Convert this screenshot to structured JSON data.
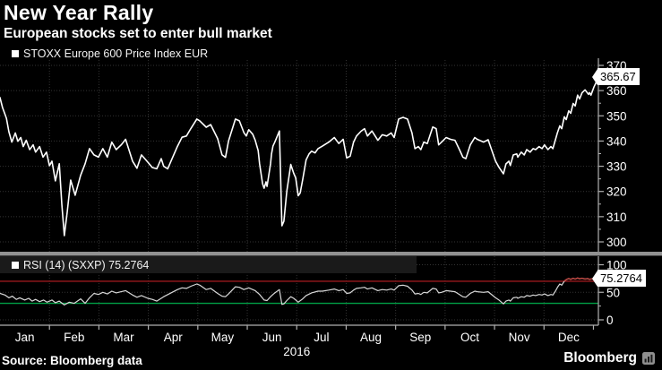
{
  "header": {
    "title": "New Year Rally",
    "subtitle": "European stocks set to enter bull market"
  },
  "price_panel": {
    "legend_label": "STOXX Europe 600 Price Index EUR",
    "last_value_label": "365.67",
    "axis_ticks": [
      370,
      360,
      350,
      340,
      330,
      320,
      310,
      300
    ]
  },
  "rsi_panel": {
    "legend_label": "RSI (14) (SXXP) 75.2764",
    "last_value_label": "75.2764",
    "axis_ticks": [
      100,
      50,
      0
    ]
  },
  "x_axis": {
    "months": [
      "Jan",
      "Feb",
      "Mar",
      "Apr",
      "May",
      "Jun",
      "Jul",
      "Aug",
      "Sep",
      "Oct",
      "Nov",
      "Dec"
    ],
    "year": "2016"
  },
  "footer": {
    "source": "Source: Bloomberg data",
    "brand": "Bloomberg",
    "brand_icon": "bloomberg-terminal-icon"
  },
  "colors": {
    "background": "#000000",
    "grid": "#333333",
    "axis": "#b0b0b0",
    "price_line": "#ffffff",
    "rsi_line": "#d8d8d8",
    "rsi_overbought_segment": "#c2443f",
    "overbought_line": "#99191c",
    "oversold_line": "#00a046",
    "callout_bg": "#ffffff",
    "callout_text": "#000000",
    "rsi_legend_bg": "#1a1a1a",
    "divider": "#919191"
  },
  "chart_data": [
    {
      "type": "line",
      "title": "STOXX Europe 600 Price Index EUR",
      "x_unit": "months since 2016-01-01 (0=Jan .. 12=year end)",
      "x_range": [
        0,
        12.1
      ],
      "ylim": [
        300,
        370
      ],
      "y_ticks": [
        300,
        310,
        320,
        330,
        340,
        350,
        360,
        370
      ],
      "grid": true,
      "legend_position": "top-left",
      "last_value": 365.67,
      "points": [
        [
          0,
          357.2
        ],
        [
          0.05,
          353.3
        ],
        [
          0.13,
          349
        ],
        [
          0.18,
          343.7
        ],
        [
          0.24,
          339.6
        ],
        [
          0.31,
          343.2
        ],
        [
          0.36,
          339.9
        ],
        [
          0.42,
          341.4
        ],
        [
          0.47,
          337.8
        ],
        [
          0.53,
          340.3
        ],
        [
          0.6,
          336.6
        ],
        [
          0.67,
          338.5
        ],
        [
          0.72,
          335.6
        ],
        [
          0.8,
          337.8
        ],
        [
          0.87,
          333.6
        ],
        [
          0.94,
          335.6
        ],
        [
          1,
          330.2
        ],
        [
          1.05,
          332
        ],
        [
          1.12,
          324.2
        ],
        [
          1.2,
          331
        ],
        [
          1.25,
          315
        ],
        [
          1.3,
          302.5
        ],
        [
          1.36,
          312
        ],
        [
          1.43,
          324.5
        ],
        [
          1.52,
          318.5
        ],
        [
          1.63,
          326.4
        ],
        [
          1.72,
          331
        ],
        [
          1.81,
          337
        ],
        [
          1.9,
          334.5
        ],
        [
          1.99,
          333.6
        ],
        [
          2.08,
          337
        ],
        [
          2.17,
          333.6
        ],
        [
          2.26,
          339.6
        ],
        [
          2.35,
          336.6
        ],
        [
          2.45,
          338.5
        ],
        [
          2.54,
          340.7
        ],
        [
          2.68,
          332
        ],
        [
          2.77,
          329.2
        ],
        [
          2.86,
          334.5
        ],
        [
          2.99,
          331.6
        ],
        [
          3.08,
          329.5
        ],
        [
          3.17,
          329
        ],
        [
          3.26,
          333
        ],
        [
          3.31,
          330
        ],
        [
          3.39,
          329
        ],
        [
          3.48,
          333
        ],
        [
          3.59,
          338
        ],
        [
          3.68,
          341.5
        ],
        [
          3.77,
          342
        ],
        [
          3.86,
          345
        ],
        [
          3.98,
          348.7
        ],
        [
          4.04,
          348
        ],
        [
          4.17,
          345.5
        ],
        [
          4.26,
          346.5
        ],
        [
          4.4,
          341
        ],
        [
          4.49,
          334.5
        ],
        [
          4.56,
          333.5
        ],
        [
          4.62,
          340
        ],
        [
          4.76,
          348.7
        ],
        [
          4.84,
          348
        ],
        [
          4.93,
          343.4
        ],
        [
          4.98,
          342
        ],
        [
          5.03,
          344.5
        ],
        [
          5.11,
          342.7
        ],
        [
          5.16,
          340.3
        ],
        [
          5.22,
          336.2
        ],
        [
          5.25,
          330.9
        ],
        [
          5.31,
          323.1
        ],
        [
          5.34,
          321.3
        ],
        [
          5.38,
          323.8
        ],
        [
          5.4,
          322
        ],
        [
          5.47,
          330.9
        ],
        [
          5.49,
          334.9
        ],
        [
          5.52,
          338
        ],
        [
          5.56,
          339.7
        ],
        [
          5.65,
          344
        ],
        [
          5.7,
          306.4
        ],
        [
          5.74,
          308.2
        ],
        [
          5.8,
          320.2
        ],
        [
          5.88,
          330.7
        ],
        [
          5.94,
          327.2
        ],
        [
          5.98,
          325.4
        ],
        [
          6.03,
          318.3
        ],
        [
          6.07,
          319.4
        ],
        [
          6.12,
          324.7
        ],
        [
          6.19,
          332.5
        ],
        [
          6.25,
          334.9
        ],
        [
          6.3,
          336
        ],
        [
          6.37,
          335.3
        ],
        [
          6.43,
          337
        ],
        [
          6.52,
          338
        ],
        [
          6.65,
          339.6
        ],
        [
          6.76,
          341.4
        ],
        [
          6.85,
          339
        ],
        [
          6.94,
          340.7
        ],
        [
          7.01,
          333.3
        ],
        [
          7.08,
          334
        ],
        [
          7.15,
          339.6
        ],
        [
          7.21,
          342
        ],
        [
          7.3,
          343.9
        ],
        [
          7.37,
          344.9
        ],
        [
          7.43,
          342
        ],
        [
          7.52,
          344
        ],
        [
          7.64,
          340.3
        ],
        [
          7.73,
          342.5
        ],
        [
          7.82,
          342
        ],
        [
          7.91,
          343.2
        ],
        [
          7.97,
          341.4
        ],
        [
          8.06,
          348.7
        ],
        [
          8.15,
          349.4
        ],
        [
          8.24,
          348.7
        ],
        [
          8.33,
          343.2
        ],
        [
          8.39,
          337
        ],
        [
          8.46,
          337.8
        ],
        [
          8.51,
          336.6
        ],
        [
          8.57,
          339.6
        ],
        [
          8.64,
          339
        ],
        [
          8.75,
          345.6
        ],
        [
          8.82,
          344.9
        ],
        [
          8.87,
          338.5
        ],
        [
          8.93,
          339.6
        ],
        [
          9.02,
          341.4
        ],
        [
          9.11,
          340.7
        ],
        [
          9.2,
          340.3
        ],
        [
          9.29,
          336.6
        ],
        [
          9.36,
          333.6
        ],
        [
          9.42,
          333
        ],
        [
          9.51,
          338.5
        ],
        [
          9.6,
          341.4
        ],
        [
          9.65,
          340.7
        ],
        [
          9.78,
          339.6
        ],
        [
          9.87,
          340.5
        ],
        [
          10.02,
          332
        ],
        [
          10.09,
          329.6
        ],
        [
          10.18,
          327
        ],
        [
          10.23,
          330.9
        ],
        [
          10.29,
          332
        ],
        [
          10.32,
          330.3
        ],
        [
          10.38,
          334.5
        ],
        [
          10.45,
          334.9
        ],
        [
          10.47,
          333.6
        ],
        [
          10.54,
          335.6
        ],
        [
          10.6,
          334.5
        ],
        [
          10.65,
          336.6
        ],
        [
          10.72,
          335.6
        ],
        [
          10.78,
          337
        ],
        [
          10.83,
          336.6
        ],
        [
          10.9,
          337.8
        ],
        [
          10.96,
          337
        ],
        [
          11.01,
          338.5
        ],
        [
          11.08,
          336.6
        ],
        [
          11.14,
          337.8
        ],
        [
          11.18,
          337
        ],
        [
          11.27,
          343.2
        ],
        [
          11.32,
          346
        ],
        [
          11.36,
          344.9
        ],
        [
          11.41,
          349.6
        ],
        [
          11.45,
          348.5
        ],
        [
          11.5,
          352
        ],
        [
          11.54,
          351
        ],
        [
          11.59,
          354.9
        ],
        [
          11.63,
          353.9
        ],
        [
          11.68,
          358.2
        ],
        [
          11.72,
          356.7
        ],
        [
          11.77,
          359.2
        ],
        [
          11.83,
          360.3
        ],
        [
          11.9,
          358.5
        ],
        [
          11.92,
          359.2
        ],
        [
          11.95,
          358.2
        ],
        [
          12.01,
          361.4
        ],
        [
          12.08,
          364.3
        ],
        [
          12.1,
          365.67
        ]
      ]
    },
    {
      "type": "line",
      "title": "RSI (14) (SXXP)",
      "x_unit": "months since 2016-01-01 (0=Jan .. 12=year end)",
      "x_range": [
        0,
        12.1
      ],
      "ylim": [
        0,
        100
      ],
      "y_ticks": [
        0,
        50,
        100
      ],
      "overbought": 70,
      "oversold": 30,
      "last_value": 75.2764,
      "points": [
        [
          0,
          48
        ],
        [
          0.1,
          45
        ],
        [
          0.18,
          40
        ],
        [
          0.25,
          43
        ],
        [
          0.33,
          37
        ],
        [
          0.4,
          40
        ],
        [
          0.5,
          36
        ],
        [
          0.58,
          39
        ],
        [
          0.65,
          34
        ],
        [
          0.72,
          37
        ],
        [
          0.8,
          33
        ],
        [
          0.88,
          36
        ],
        [
          0.95,
          32
        ],
        [
          1.05,
          36
        ],
        [
          1.12,
          31
        ],
        [
          1.2,
          34
        ],
        [
          1.3,
          27
        ],
        [
          1.4,
          32
        ],
        [
          1.5,
          30
        ],
        [
          1.63,
          38
        ],
        [
          1.72,
          30
        ],
        [
          1.81,
          40
        ],
        [
          1.9,
          48
        ],
        [
          1.99,
          46
        ],
        [
          2.08,
          50
        ],
        [
          2.17,
          47
        ],
        [
          2.26,
          52
        ],
        [
          2.35,
          49
        ],
        [
          2.45,
          51
        ],
        [
          2.54,
          53
        ],
        [
          2.68,
          45
        ],
        [
          2.77,
          41
        ],
        [
          2.86,
          44
        ],
        [
          2.99,
          39
        ],
        [
          3.08,
          37
        ],
        [
          3.17,
          34
        ],
        [
          3.31,
          42
        ],
        [
          3.48,
          50
        ],
        [
          3.59,
          55
        ],
        [
          3.68,
          58
        ],
        [
          3.77,
          57
        ],
        [
          3.86,
          61
        ],
        [
          3.98,
          65
        ],
        [
          4.04,
          63
        ],
        [
          4.17,
          55
        ],
        [
          4.26,
          57
        ],
        [
          4.4,
          48
        ],
        [
          4.49,
          43
        ],
        [
          4.56,
          42
        ],
        [
          4.62,
          47
        ],
        [
          4.76,
          60
        ],
        [
          4.84,
          59
        ],
        [
          4.93,
          55
        ],
        [
          5.03,
          58
        ],
        [
          5.16,
          53
        ],
        [
          5.25,
          46
        ],
        [
          5.34,
          36
        ],
        [
          5.4,
          35
        ],
        [
          5.47,
          42
        ],
        [
          5.52,
          46
        ],
        [
          5.56,
          49
        ],
        [
          5.65,
          55
        ],
        [
          5.7,
          28
        ],
        [
          5.74,
          29
        ],
        [
          5.8,
          35
        ],
        [
          5.88,
          42
        ],
        [
          5.94,
          39
        ],
        [
          6.03,
          32
        ],
        [
          6.12,
          38
        ],
        [
          6.19,
          44
        ],
        [
          6.3,
          49
        ],
        [
          6.43,
          52
        ],
        [
          6.52,
          52
        ],
        [
          6.65,
          54
        ],
        [
          6.76,
          56
        ],
        [
          6.85,
          53
        ],
        [
          6.94,
          55
        ],
        [
          7.01,
          48
        ],
        [
          7.08,
          49
        ],
        [
          7.15,
          54
        ],
        [
          7.21,
          57
        ],
        [
          7.3,
          58
        ],
        [
          7.37,
          59
        ],
        [
          7.43,
          56
        ],
        [
          7.52,
          58
        ],
        [
          7.64,
          53
        ],
        [
          7.73,
          55
        ],
        [
          7.82,
          54
        ],
        [
          7.91,
          56
        ],
        [
          7.97,
          54
        ],
        [
          8.06,
          62
        ],
        [
          8.15,
          63
        ],
        [
          8.24,
          61
        ],
        [
          8.33,
          54
        ],
        [
          8.39,
          47
        ],
        [
          8.46,
          48
        ],
        [
          8.51,
          46
        ],
        [
          8.57,
          50
        ],
        [
          8.64,
          49
        ],
        [
          8.75,
          57
        ],
        [
          8.82,
          56
        ],
        [
          8.87,
          49
        ],
        [
          8.93,
          50
        ],
        [
          9.02,
          53
        ],
        [
          9.11,
          52
        ],
        [
          9.2,
          51
        ],
        [
          9.29,
          46
        ],
        [
          9.36,
          42
        ],
        [
          9.42,
          41
        ],
        [
          9.51,
          48
        ],
        [
          9.6,
          52
        ],
        [
          9.65,
          51
        ],
        [
          9.78,
          50
        ],
        [
          9.87,
          51
        ],
        [
          10.02,
          40
        ],
        [
          10.09,
          36
        ],
        [
          10.18,
          29
        ],
        [
          10.23,
          34
        ],
        [
          10.29,
          36
        ],
        [
          10.32,
          34
        ],
        [
          10.38,
          40
        ],
        [
          10.45,
          41
        ],
        [
          10.47,
          39
        ],
        [
          10.54,
          42
        ],
        [
          10.6,
          41
        ],
        [
          10.65,
          44
        ],
        [
          10.72,
          43
        ],
        [
          10.78,
          45
        ],
        [
          10.83,
          44
        ],
        [
          10.9,
          46
        ],
        [
          10.96,
          45
        ],
        [
          11.01,
          47
        ],
        [
          11.08,
          44
        ],
        [
          11.14,
          46
        ],
        [
          11.18,
          45
        ],
        [
          11.23,
          52
        ],
        [
          11.28,
          60
        ],
        [
          11.32,
          65
        ],
        [
          11.36,
          63
        ],
        [
          11.41,
          70
        ],
        [
          11.45,
          73
        ],
        [
          11.5,
          75
        ],
        [
          11.54,
          73.5
        ],
        [
          11.59,
          75.5
        ],
        [
          11.63,
          74
        ],
        [
          11.68,
          76
        ],
        [
          11.72,
          74.5
        ],
        [
          11.77,
          75.5
        ],
        [
          11.83,
          74
        ],
        [
          11.88,
          75
        ],
        [
          11.92,
          73.5
        ],
        [
          11.97,
          74.5
        ],
        [
          12.01,
          73.5
        ],
        [
          12.05,
          74
        ],
        [
          12.1,
          75.28
        ]
      ]
    }
  ]
}
